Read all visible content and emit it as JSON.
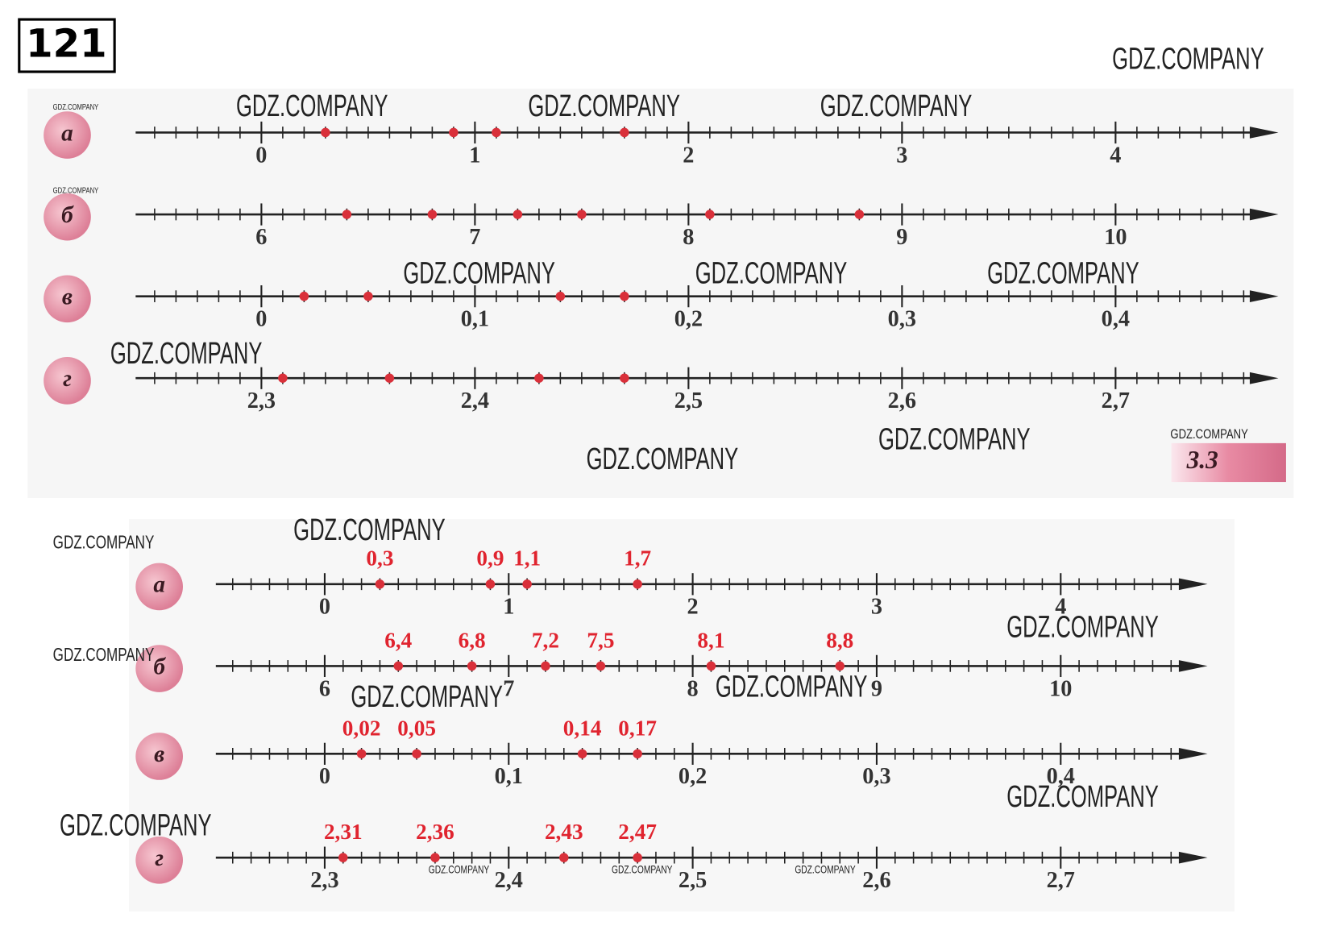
{
  "task_number": "121",
  "badge": "3.3",
  "watermark": "GDZ.COMPANY",
  "lines": [
    {
      "letter": "а",
      "ticks": [
        0,
        1,
        2,
        3,
        4
      ],
      "points": [
        {
          "value": 0.3,
          "label": "0,3"
        },
        {
          "value": 0.9,
          "label": "0,9"
        },
        {
          "value": 1.1,
          "label": "1,1"
        },
        {
          "value": 1.7,
          "label": "1,7"
        }
      ]
    },
    {
      "letter": "б",
      "ticks": [
        6,
        7,
        8,
        9,
        10
      ],
      "points": [
        {
          "value": 6.4,
          "label": "6,4"
        },
        {
          "value": 6.8,
          "label": "6,8"
        },
        {
          "value": 7.2,
          "label": "7,2"
        },
        {
          "value": 7.5,
          "label": "7,5"
        },
        {
          "value": 8.1,
          "label": "8,1"
        },
        {
          "value": 8.8,
          "label": "8,8"
        }
      ]
    },
    {
      "letter": "в",
      "ticks": [
        0,
        {
          "value": 0.1,
          "label": "0,1"
        },
        {
          "value": 0.2,
          "label": "0,2"
        },
        {
          "value": 0.3,
          "label": "0,3"
        },
        {
          "value": 0.4,
          "label": "0,4"
        }
      ],
      "points": [
        {
          "value": 0.02,
          "label": "0,02"
        },
        {
          "value": 0.05,
          "label": "0,05"
        },
        {
          "value": 0.14,
          "label": "0,14"
        },
        {
          "value": 0.17,
          "label": "0,17"
        }
      ]
    },
    {
      "letter": "г",
      "ticks": [
        {
          "value": 2.3,
          "label": "2,3"
        },
        {
          "value": 2.4,
          "label": "2,4"
        },
        {
          "value": 2.5,
          "label": "2,5"
        },
        {
          "value": 2.6,
          "label": "2,6"
        },
        {
          "value": 2.7,
          "label": "2,7"
        }
      ],
      "points": [
        {
          "value": 2.31,
          "label": "2,31"
        },
        {
          "value": 2.36,
          "label": "2,36"
        },
        {
          "value": 2.43,
          "label": "2,43"
        },
        {
          "value": 2.47,
          "label": "2,47"
        }
      ]
    }
  ]
}
